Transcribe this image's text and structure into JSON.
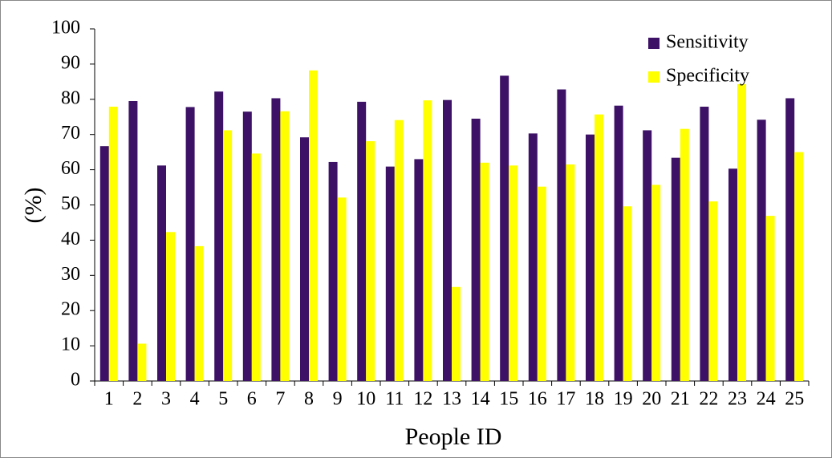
{
  "chart_data": {
    "type": "bar",
    "x_label": "People ID",
    "y_label": "(%)",
    "categories": [
      "1",
      "2",
      "3",
      "4",
      "5",
      "6",
      "7",
      "8",
      "9",
      "10",
      "11",
      "12",
      "13",
      "14",
      "15",
      "16",
      "17",
      "18",
      "19",
      "20",
      "21",
      "22",
      "23",
      "24",
      "25"
    ],
    "series": [
      {
        "name": "Sensitivity",
        "color": "#3c1166",
        "values": [
          66.7,
          79.5,
          61.2,
          77.8,
          82.2,
          76.5,
          80.3,
          69.2,
          62.2,
          79.3,
          60.9,
          63.0,
          79.8,
          74.5,
          86.7,
          70.3,
          82.8,
          70.0,
          78.2,
          71.2,
          63.4,
          77.9,
          60.3,
          74.2,
          80.3
        ]
      },
      {
        "name": "Specificity",
        "color": "#ffff00",
        "values": [
          77.9,
          10.6,
          42.3,
          38.3,
          71.2,
          64.6,
          76.6,
          88.2,
          52.1,
          68.1,
          74.1,
          79.7,
          26.7,
          62.0,
          61.2,
          55.2,
          61.5,
          75.7,
          49.6,
          55.7,
          71.6,
          51.0,
          84.3,
          46.9,
          65.0
        ]
      }
    ],
    "ylim": [
      0,
      100
    ],
    "yticks": [
      0,
      10,
      20,
      30,
      40,
      50,
      60,
      70,
      80,
      90,
      100
    ],
    "grid": false,
    "legend": "upper right"
  }
}
